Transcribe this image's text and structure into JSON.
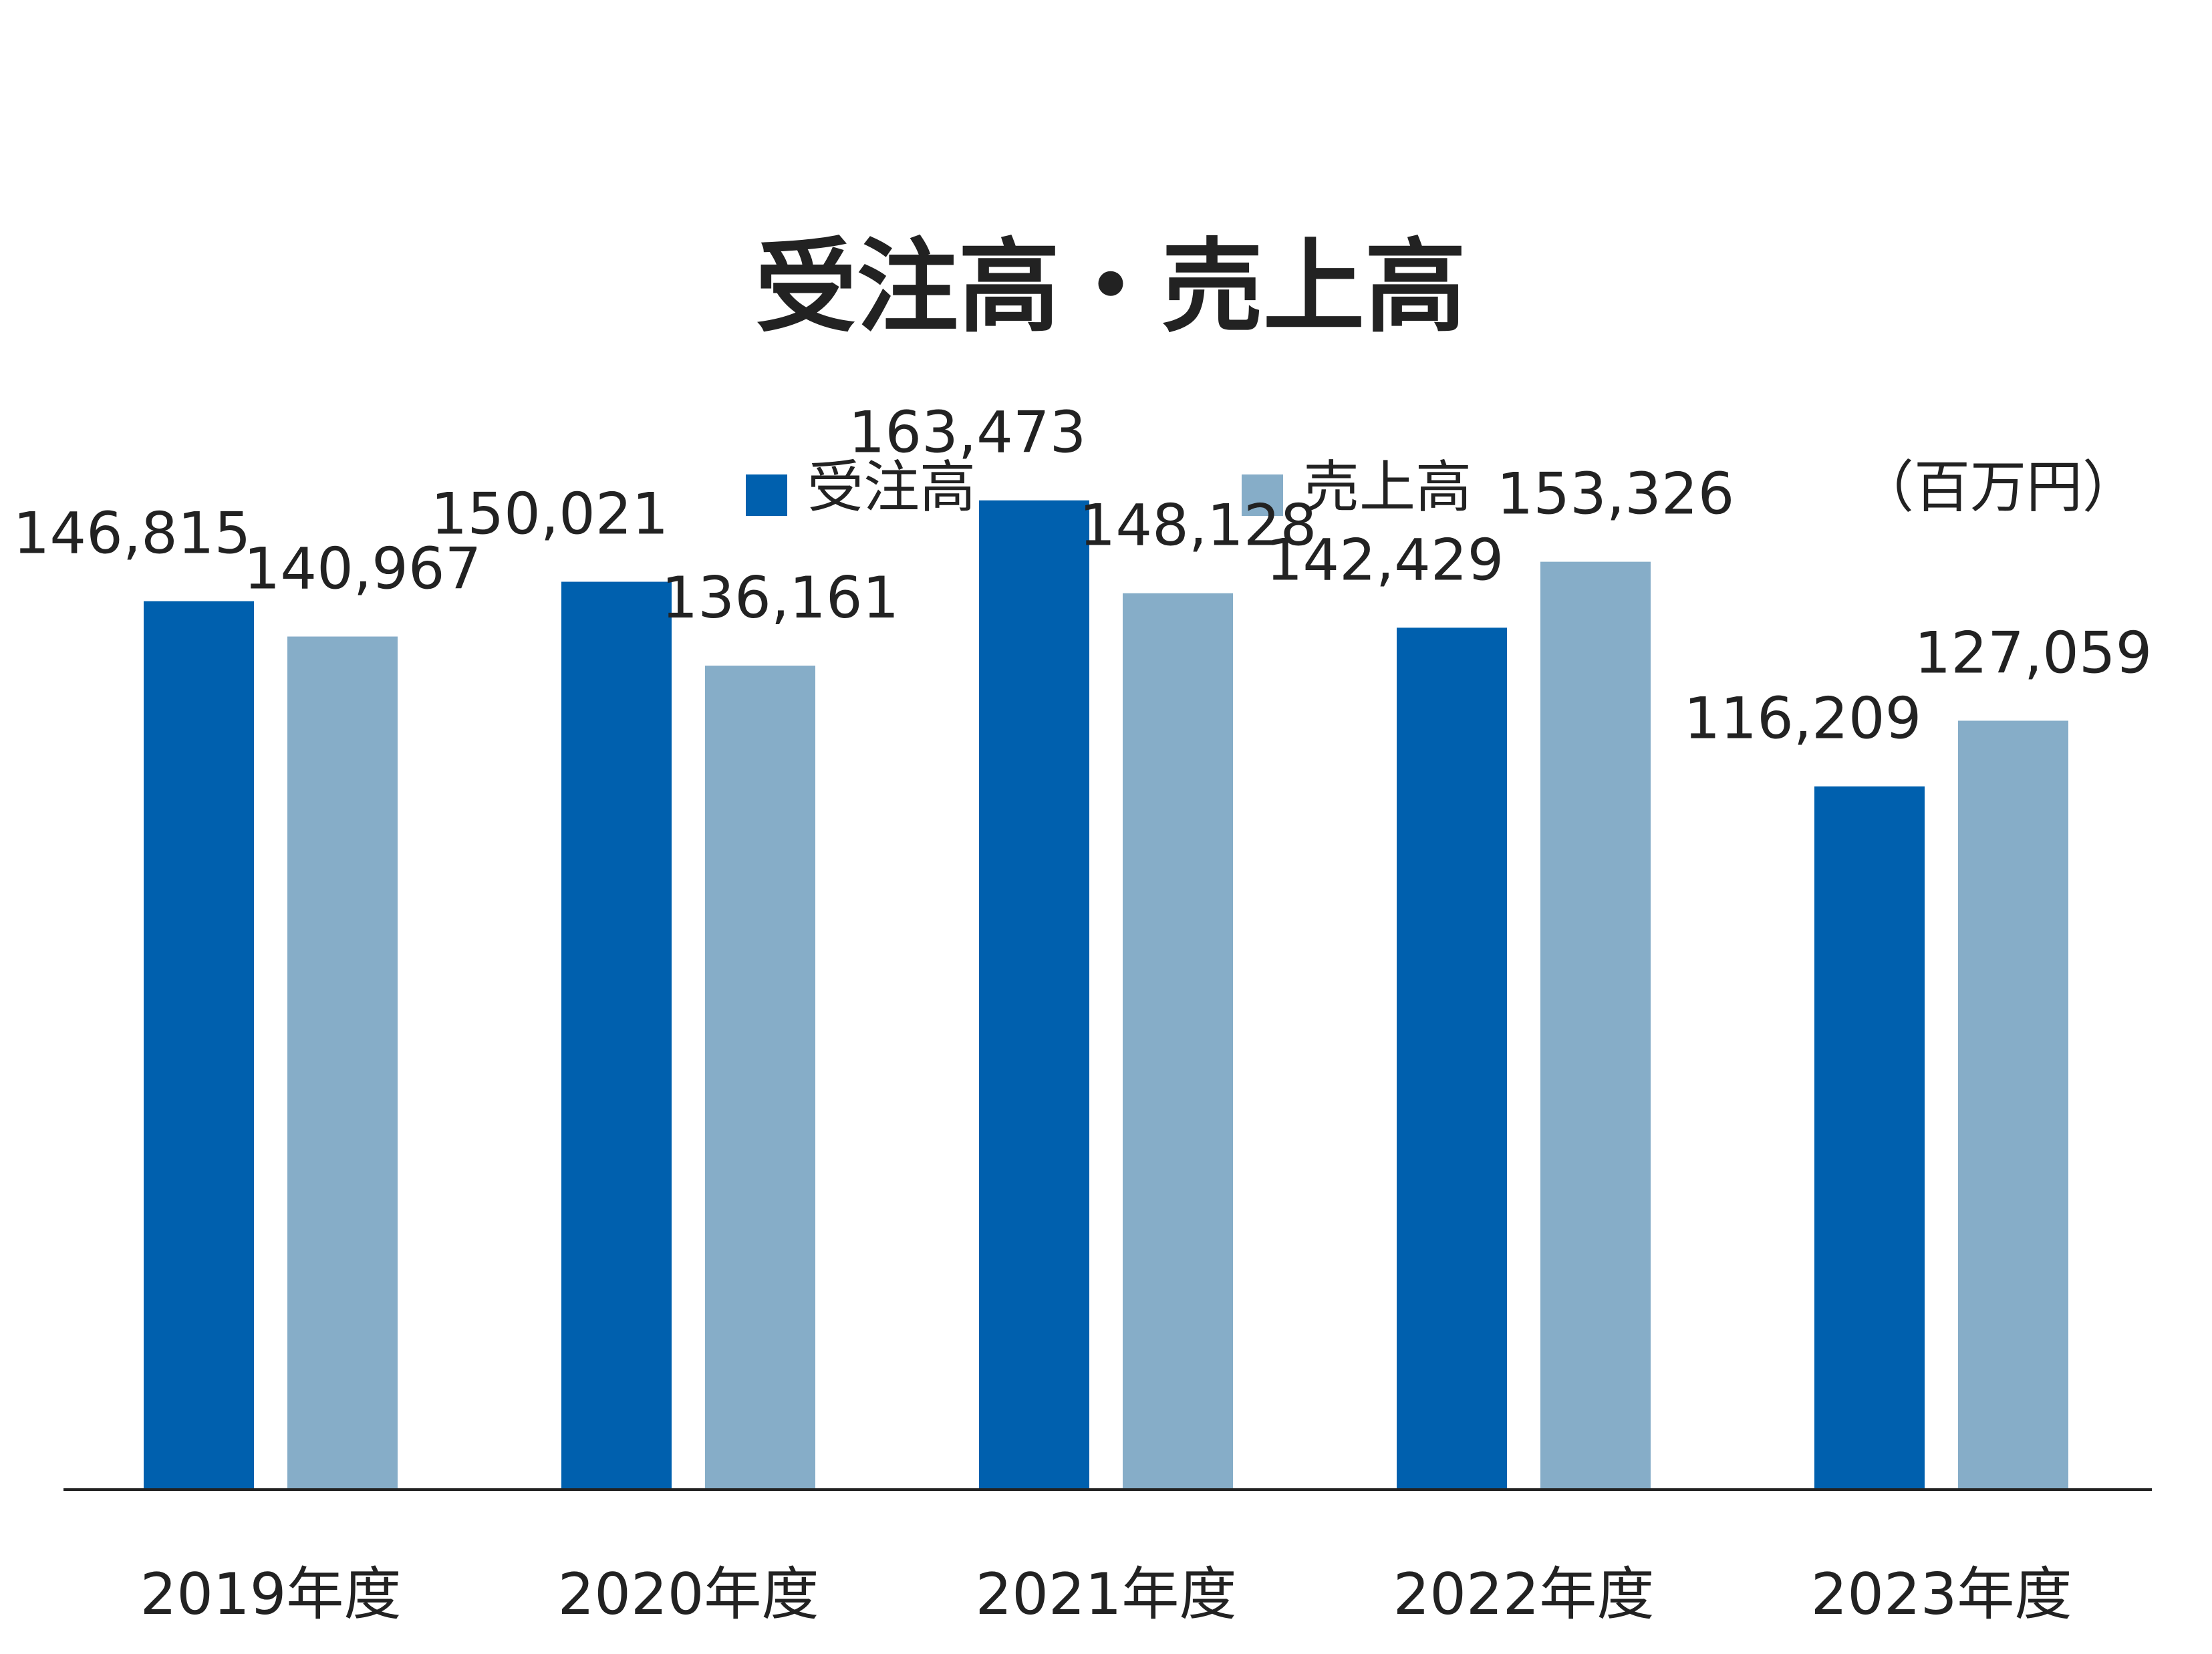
{
  "chart_data": {
    "type": "bar",
    "title": "受注高・売上高",
    "unit": "（百万円）",
    "categories": [
      "2019年度",
      "2020年度",
      "2021年度",
      "2022年度",
      "2023年度"
    ],
    "series": [
      {
        "name": "受注高",
        "color": "#0060ae",
        "values": [
          146815,
          150021,
          163473,
          142429,
          116209
        ],
        "labels": [
          "146,815",
          "150,021",
          "163,473",
          "142,429",
          "116,209"
        ]
      },
      {
        "name": "売上高",
        "color": "#86adc8",
        "values": [
          140967,
          136161,
          148128,
          153326,
          127059
        ],
        "labels": [
          "140,967",
          "136,161",
          "148,128",
          "153,326",
          "127,059"
        ]
      }
    ],
    "ylim": [
      0,
      193700
    ],
    "grid": false,
    "legend_position": "top"
  }
}
